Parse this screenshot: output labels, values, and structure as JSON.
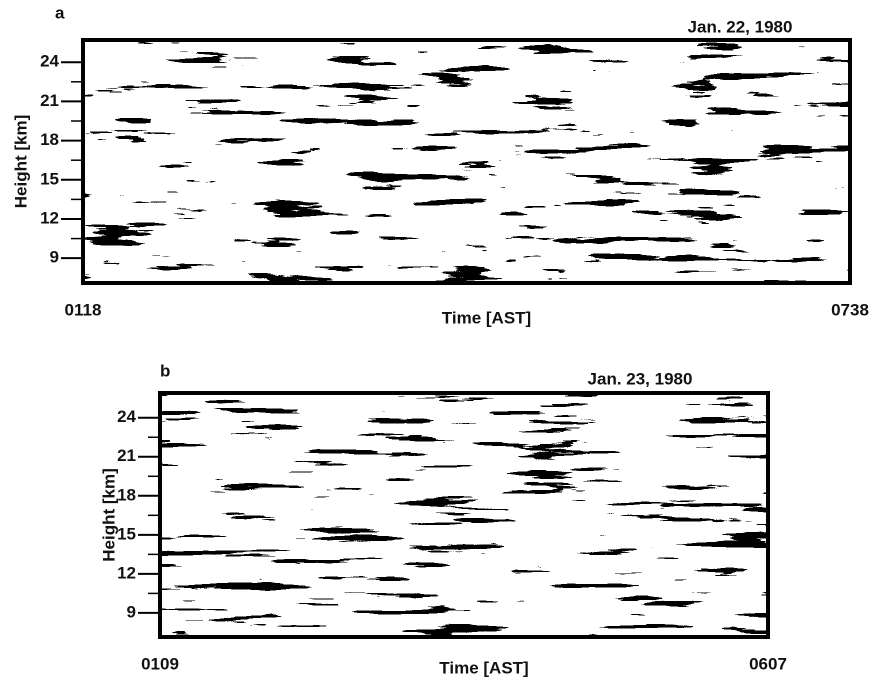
{
  "panels": [
    {
      "label": "a",
      "date": "Jan. 22, 1980",
      "y_label": "Height [km]",
      "x_label": "Time [AST]",
      "ylim": [
        7.1,
        25.7
      ],
      "yticks": [
        9,
        12,
        15,
        18,
        21,
        24
      ],
      "x_start": "0118",
      "x_end": "0738"
    },
    {
      "label": "b",
      "date": "Jan. 23, 1980",
      "y_label": "Height [km]",
      "x_label": "Time [AST]",
      "ylim": [
        7.15,
        25.9
      ],
      "yticks": [
        9,
        12,
        15,
        18,
        21,
        24
      ],
      "x_start": "0109",
      "x_end": "0607"
    }
  ]
}
